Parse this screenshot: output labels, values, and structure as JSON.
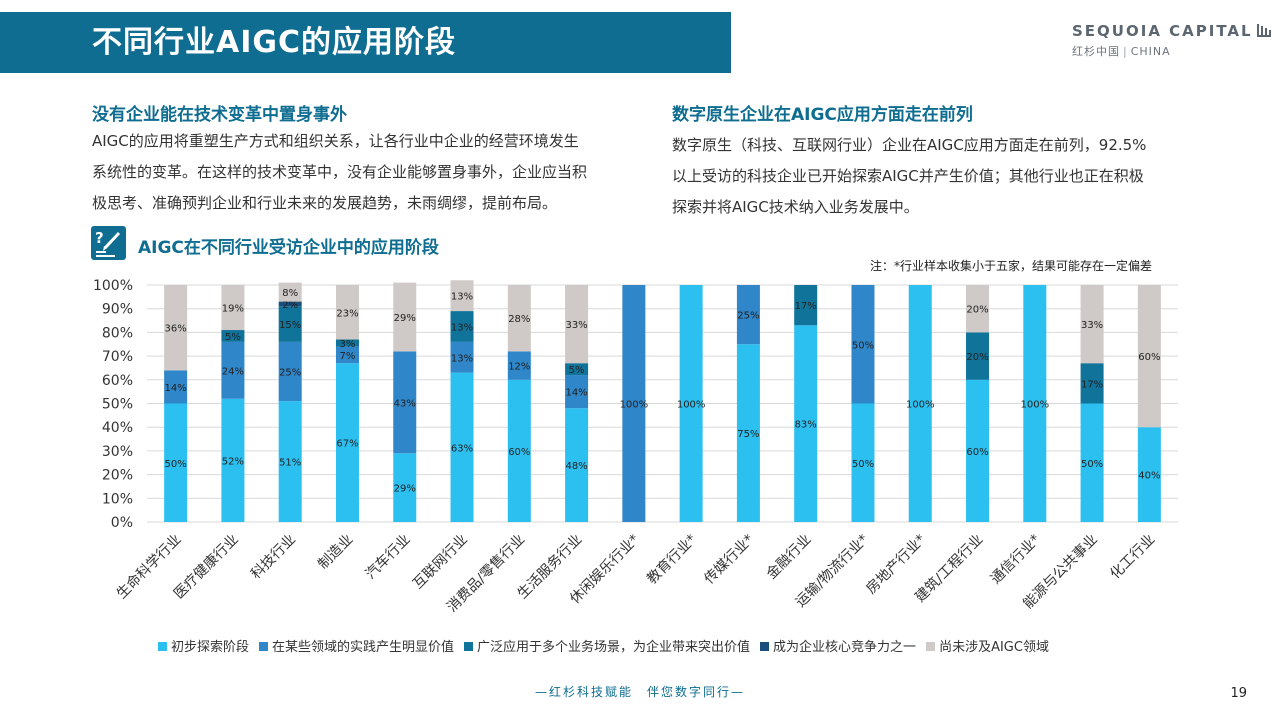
{
  "title": "不同行业AIGC的应用阶段",
  "logo": {
    "name": "SEQUOIA CAPITAL",
    "sub_cn": "红杉中国",
    "sub_en": "CHINA"
  },
  "left_section": {
    "heading": "没有企业能在技术变革中置身事外",
    "lines": [
      "AIGC的应用将重塑生产方式和组织关系，让各行业中企业的经营环境发生",
      "系统性的变革。在这样的技术变革中，没有企业能够置身事外，企业应当积",
      "极思考、准确预判企业和行业未来的发展趋势，未雨绸缪，提前布局。"
    ]
  },
  "right_section": {
    "heading": "数字原生企业在AIGC应用方面走在前列",
    "lines": [
      "数字原生（科技、互联网行业）企业在AIGC应用方面走在前列，92.5%",
      "以上受访的科技企业已开始探索AIGC并产生价值；其他行业也正在积极",
      "探索并将AIGC技术纳入业务发展中。"
    ]
  },
  "chart_heading": "AIGC在不同行业受访企业中的应用阶段",
  "chart_note": "注：*行业样本收集小于五家，结果可能存在一定偏差",
  "footer": "—红杉科技赋能　伴您数字同行—",
  "page_number": "19",
  "chart_data": {
    "type": "bar",
    "stacked": true,
    "ylim": [
      0,
      100
    ],
    "yticks": [
      "0%",
      "10%",
      "20%",
      "30%",
      "40%",
      "50%",
      "60%",
      "70%",
      "80%",
      "90%",
      "100%"
    ],
    "grid": true,
    "legend_position": "bottom",
    "categories": [
      "生命科学行业",
      "医疗健康行业",
      "科技行业",
      "制造业",
      "汽车行业",
      "互联网行业",
      "消费品/零售行业",
      "生活服务行业",
      "休闲娱乐行业*",
      "教育行业*",
      "传媒行业*",
      "金融行业",
      "运输/物流行业*",
      "房地产行业*",
      "建筑/工程行业",
      "通信行业*",
      "能源与公共事业",
      "化工行业"
    ],
    "series": [
      {
        "name": "初步探索阶段",
        "color": "#2cc0f0",
        "values": [
          50,
          52,
          51,
          67,
          29,
          63,
          60,
          48,
          0,
          100,
          75,
          83,
          50,
          100,
          60,
          100,
          50,
          40
        ]
      },
      {
        "name": "在某些领域的实践产生明显价值",
        "color": "#2f86c9",
        "values": [
          14,
          24,
          25,
          7,
          43,
          13,
          12,
          14,
          100,
          0,
          25,
          0,
          50,
          0,
          0,
          0,
          0,
          0
        ]
      },
      {
        "name": "广泛应用于多个业务场景，为企业带来突出价值",
        "color": "#10739a",
        "values": [
          0,
          5,
          15,
          3,
          0,
          13,
          0,
          5,
          0,
          0,
          0,
          17,
          0,
          0,
          20,
          0,
          17,
          0
        ]
      },
      {
        "name": "成为企业核心竞争力之一",
        "color": "#1a4f7d",
        "values": [
          0,
          0,
          2,
          0,
          0,
          0,
          0,
          0,
          0,
          0,
          0,
          0,
          0,
          0,
          0,
          0,
          0,
          0
        ]
      },
      {
        "name": "尚未涉及AIGC领域",
        "color": "#cfcac7",
        "values": [
          36,
          19,
          8,
          23,
          29,
          13,
          28,
          33,
          0,
          0,
          0,
          0,
          0,
          0,
          20,
          0,
          33,
          60
        ]
      }
    ]
  }
}
